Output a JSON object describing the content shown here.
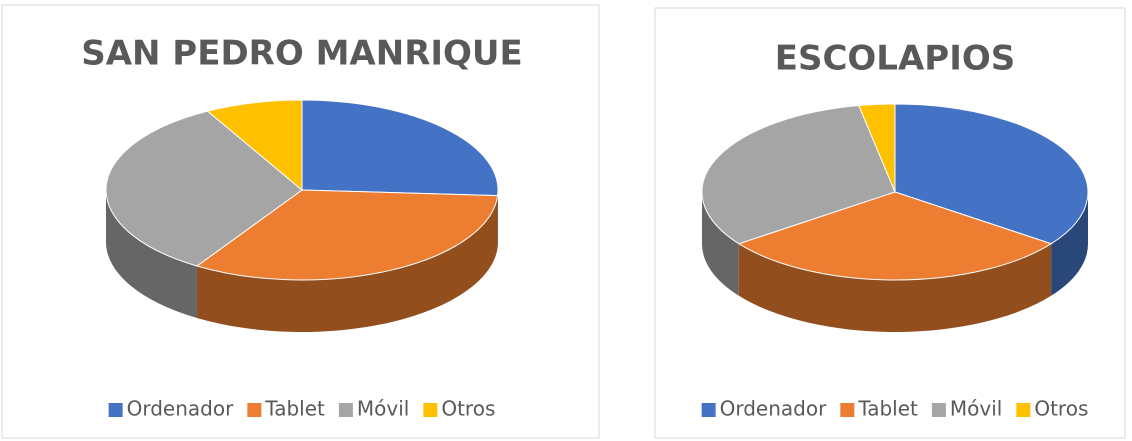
{
  "chart_data": [
    {
      "type": "pie",
      "title": "SAN PEDRO MANRIQUE",
      "categories": [
        "Ordenador",
        "Tablet",
        "Móvil",
        "Otros"
      ],
      "values": [
        26,
        33,
        33,
        8
      ],
      "colors": [
        "#4472c4",
        "#ed7d31",
        "#a5a5a5",
        "#ffc000"
      ]
    },
    {
      "type": "pie",
      "title": "ESCOLAPIOS",
      "categories": [
        "Ordenador",
        "Tablet",
        "Móvil",
        "Otros"
      ],
      "values": [
        35,
        30,
        32,
        3
      ],
      "colors": [
        "#4472c4",
        "#ed7d31",
        "#a5a5a5",
        "#ffc000"
      ]
    }
  ]
}
